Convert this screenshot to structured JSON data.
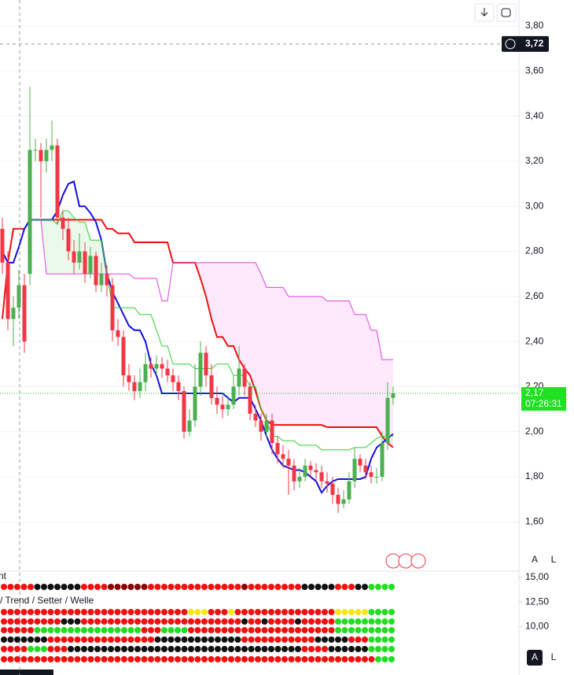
{
  "chart_data": [
    {
      "type": "candlestick",
      "open": [
        2.9,
        2.75,
        2.5,
        2.55,
        2.65,
        2.7,
        3.25,
        3.25,
        3.2,
        3.25,
        3.27,
        2.95,
        2.9,
        2.8,
        2.75,
        2.8,
        2.7,
        2.78,
        2.65,
        2.7,
        2.65,
        2.45,
        2.42,
        2.25,
        2.22,
        2.18,
        2.22,
        2.3,
        2.28,
        2.3,
        2.28,
        2.25,
        2.22,
        2.18,
        2.0,
        2.05,
        2.2,
        2.35,
        2.25,
        2.15,
        2.12,
        2.1,
        2.12,
        2.2,
        2.28,
        2.2,
        2.08,
        2.05,
        2.0,
        2.05,
        1.95,
        1.9,
        1.88,
        1.85,
        1.78,
        1.8,
        1.85,
        1.83,
        1.82,
        1.78,
        1.77,
        1.72,
        1.68,
        1.7,
        1.78,
        1.88,
        1.85,
        1.82,
        1.8,
        1.8,
        1.95,
        2.15
      ],
      "high": [
        2.95,
        2.8,
        2.6,
        2.72,
        2.7,
        3.53,
        3.3,
        3.28,
        3.3,
        3.38,
        3.3,
        2.98,
        2.95,
        2.85,
        2.88,
        2.84,
        2.82,
        2.8,
        2.75,
        2.74,
        2.68,
        2.5,
        2.45,
        2.3,
        2.25,
        2.28,
        2.35,
        2.33,
        2.34,
        2.33,
        2.32,
        2.28,
        2.25,
        2.2,
        2.1,
        2.3,
        2.4,
        2.38,
        2.3,
        2.2,
        2.16,
        2.16,
        2.25,
        2.38,
        2.3,
        2.22,
        2.12,
        2.08,
        2.08,
        2.08,
        1.98,
        1.94,
        1.92,
        1.88,
        1.84,
        1.88,
        1.87,
        1.86,
        1.85,
        1.82,
        1.8,
        1.75,
        1.74,
        1.82,
        1.93,
        1.9,
        1.88,
        1.85,
        1.84,
        2.0,
        2.22,
        2.2
      ],
      "low": [
        2.7,
        2.45,
        2.38,
        2.5,
        2.35,
        2.65,
        3.2,
        2.95,
        3.15,
        3.2,
        2.92,
        2.85,
        2.76,
        2.7,
        2.72,
        2.66,
        2.68,
        2.62,
        2.62,
        2.6,
        2.4,
        2.38,
        2.2,
        2.18,
        2.14,
        2.15,
        2.18,
        2.24,
        2.25,
        2.24,
        2.22,
        2.18,
        2.14,
        1.97,
        1.98,
        2.02,
        2.16,
        2.2,
        2.12,
        2.08,
        2.06,
        2.07,
        2.1,
        2.16,
        2.16,
        2.05,
        2.02,
        1.96,
        1.97,
        1.9,
        1.86,
        1.84,
        1.72,
        1.74,
        1.75,
        1.78,
        1.8,
        1.78,
        1.75,
        1.73,
        1.68,
        1.64,
        1.66,
        1.68,
        1.75,
        1.82,
        1.79,
        1.77,
        1.77,
        1.78,
        1.92,
        2.12
      ],
      "close": [
        2.75,
        2.5,
        2.55,
        2.65,
        2.4,
        3.25,
        3.25,
        3.2,
        3.25,
        3.27,
        2.95,
        2.9,
        2.8,
        2.75,
        2.8,
        2.7,
        2.78,
        2.65,
        2.7,
        2.65,
        2.45,
        2.42,
        2.25,
        2.22,
        2.18,
        2.22,
        2.3,
        2.28,
        2.3,
        2.28,
        2.25,
        2.22,
        2.18,
        2.0,
        2.05,
        2.2,
        2.35,
        2.25,
        2.15,
        2.12,
        2.1,
        2.12,
        2.2,
        2.28,
        2.2,
        2.08,
        2.05,
        2.0,
        2.05,
        1.95,
        1.9,
        1.88,
        1.85,
        1.78,
        1.8,
        1.85,
        1.83,
        1.82,
        1.78,
        1.77,
        1.72,
        1.68,
        1.7,
        1.78,
        1.88,
        1.85,
        1.82,
        1.8,
        1.8,
        1.95,
        2.15,
        2.17
      ],
      "up_color": "#4caf50",
      "down_color": "#f23645",
      "series": [
        {
          "color": "#f01010",
          "values": [
            2.5,
            2.75,
            2.9,
            2.9,
            2.9,
            2.94,
            2.94,
            2.94,
            2.94,
            2.94,
            2.94,
            2.94,
            2.94,
            2.94,
            2.94,
            2.94,
            2.94,
            2.94,
            2.94,
            2.9,
            2.9,
            2.88,
            2.88,
            2.88,
            2.84,
            2.84,
            2.84,
            2.84,
            2.84,
            2.84,
            2.84,
            2.75,
            2.75,
            2.75,
            2.75,
            2.75,
            2.68,
            2.6,
            2.5,
            2.42,
            2.42,
            2.38,
            2.38,
            2.32,
            2.28,
            2.25,
            2.18,
            2.1,
            2.05,
            2.03,
            2.03,
            2.03,
            2.03,
            2.03,
            2.03,
            2.03,
            2.03,
            2.03,
            2.03,
            2.02,
            2.02,
            2.02,
            2.02,
            2.02,
            2.02,
            2.02,
            2.02,
            2.02,
            2.02,
            1.98,
            1.95,
            1.93
          ]
        },
        {
          "color": "#1010e0",
          "values": [
            2.8,
            2.75,
            2.75,
            2.82,
            2.9,
            2.94,
            2.94,
            2.94,
            2.94,
            2.94,
            2.98,
            3.05,
            3.1,
            3.11,
            3.0,
            3.0,
            2.97,
            2.93,
            2.85,
            2.7,
            2.62,
            2.57,
            2.52,
            2.47,
            2.45,
            2.45,
            2.4,
            2.3,
            2.25,
            2.17,
            2.17,
            2.17,
            2.17,
            2.17,
            2.17,
            2.17,
            2.17,
            2.17,
            2.17,
            2.17,
            2.17,
            2.15,
            2.13,
            2.15,
            2.15,
            2.15,
            2.1,
            2.05,
            1.98,
            1.92,
            1.88,
            1.85,
            1.84,
            1.83,
            1.83,
            1.82,
            1.8,
            1.78,
            1.73,
            1.76,
            1.78,
            1.79,
            1.79,
            1.79,
            1.79,
            1.79,
            1.8,
            1.88,
            1.93,
            1.95,
            1.97,
            1.99
          ]
        },
        {
          "color": "#e040e0",
          "values": [
            null,
            null,
            null,
            null,
            null,
            2.94,
            2.94,
            2.94,
            2.7,
            2.7,
            2.7,
            2.7,
            2.7,
            2.7,
            2.7,
            2.7,
            2.7,
            2.7,
            2.7,
            2.7,
            2.7,
            2.7,
            2.7,
            2.7,
            2.68,
            2.68,
            2.68,
            2.68,
            2.68,
            2.58,
            2.58,
            2.75,
            2.75,
            2.75,
            2.75,
            2.75,
            2.75,
            2.75,
            2.75,
            2.75,
            2.75,
            2.75,
            2.75,
            2.75,
            2.75,
            2.75,
            2.75,
            2.7,
            2.64,
            2.64,
            2.64,
            2.64,
            2.6,
            2.6,
            2.6,
            2.6,
            2.6,
            2.6,
            2.6,
            2.58,
            2.58,
            2.58,
            2.58,
            2.58,
            2.52,
            2.52,
            2.52,
            2.45,
            2.45,
            2.32,
            2.32,
            2.32
          ]
        },
        {
          "color": "#30d030",
          "values": [
            null,
            null,
            null,
            null,
            null,
            2.94,
            2.94,
            2.94,
            2.94,
            2.94,
            2.92,
            2.98,
            2.98,
            2.95,
            2.93,
            2.93,
            2.85,
            2.85,
            2.85,
            2.7,
            2.55,
            2.55,
            2.55,
            2.55,
            2.55,
            2.52,
            2.52,
            2.52,
            2.45,
            2.38,
            2.38,
            2.3,
            2.3,
            2.3,
            2.3,
            2.28,
            2.28,
            2.28,
            2.28,
            2.3,
            2.3,
            2.3,
            2.25,
            2.25,
            2.25,
            2.2,
            2.2,
            2.1,
            2.05,
            1.98,
            1.98,
            1.96,
            1.96,
            1.96,
            1.94,
            1.94,
            1.94,
            1.94,
            1.92,
            1.92,
            1.92,
            1.92,
            1.92,
            1.92,
            1.93,
            1.93,
            1.93,
            1.95,
            1.97,
            1.98,
            1.98,
            1.98
          ]
        }
      ],
      "ylim": [
        1.385,
        3.915
      ],
      "yticks": [
        {
          "value": 3.8,
          "label": "3,80"
        },
        {
          "value": 3.6,
          "label": "3,60"
        },
        {
          "value": 3.4,
          "label": "3,40"
        },
        {
          "value": 3.2,
          "label": "3,20"
        },
        {
          "value": 3.0,
          "label": "3,00"
        },
        {
          "value": 2.8,
          "label": "2,80"
        },
        {
          "value": 2.6,
          "label": "2,60"
        },
        {
          "value": 2.4,
          "label": "2,40"
        },
        {
          "value": 2.2,
          "label": "2,20"
        },
        {
          "value": 2.0,
          "label": "2,00"
        },
        {
          "value": 1.8,
          "label": "1,80"
        },
        {
          "value": 1.6,
          "label": "1,60"
        }
      ],
      "crosshair_price": {
        "value": 3.72,
        "label": "3,72"
      },
      "last_price": {
        "value": 2.17,
        "label": "2,17"
      },
      "countdown": "07:26:31"
    },
    {
      "type": "dots",
      "title": "nt",
      "subtitle": "/ Trend / Setter / Welle",
      "ylim": [
        5.08,
        15.63
      ],
      "yticks": [
        {
          "value": 15,
          "label": "15,00"
        },
        {
          "value": 12.5,
          "label": "12,50"
        },
        {
          "value": 10,
          "label": "10,00"
        }
      ],
      "palette": {
        "g": "#22dd22",
        "r": "#f01010",
        "k": "#111111",
        "y": "#f5e61a",
        "d": "#8b0000"
      },
      "rows": [
        "rrrrrkkkkkkkrrrrddddddrrrrrrrrrrrrrrdrrrrrrrrkkkkkrrrkkgggg",
        "rrrrrrrrrrrrrrrrrrrrrrrrrrrryyyrrryrrrrrrrrrrrrrrryyyyygggg",
        "rrrrrrrrrkkkrrrrrrrrrrrrrrrrrrrrrrrrkrrkrrrrkrrrrrggggggggg",
        "rrrrrggggggggggggggggrrrggggrrrrrrrrrrrrrrrrrrrrrrggggggggg",
        "kkkkkkkrrrrrrrrrrrrrrrrkkkkkkkkkkkkkrrrrrrrrrrrkkkkkrrrgggg",
        "rrrrgggrrrkkkkkkkkkkkkkkkkkkkkkkkkkkkkkkkkkkkrrrrkkkkkkgggg",
        "rrrrrrrrrrrrrrrrrrrrrrrrrrrrrrrrrrrrrrrrrrrrrrrrrrrrrrrrggg"
      ]
    }
  ]
}
